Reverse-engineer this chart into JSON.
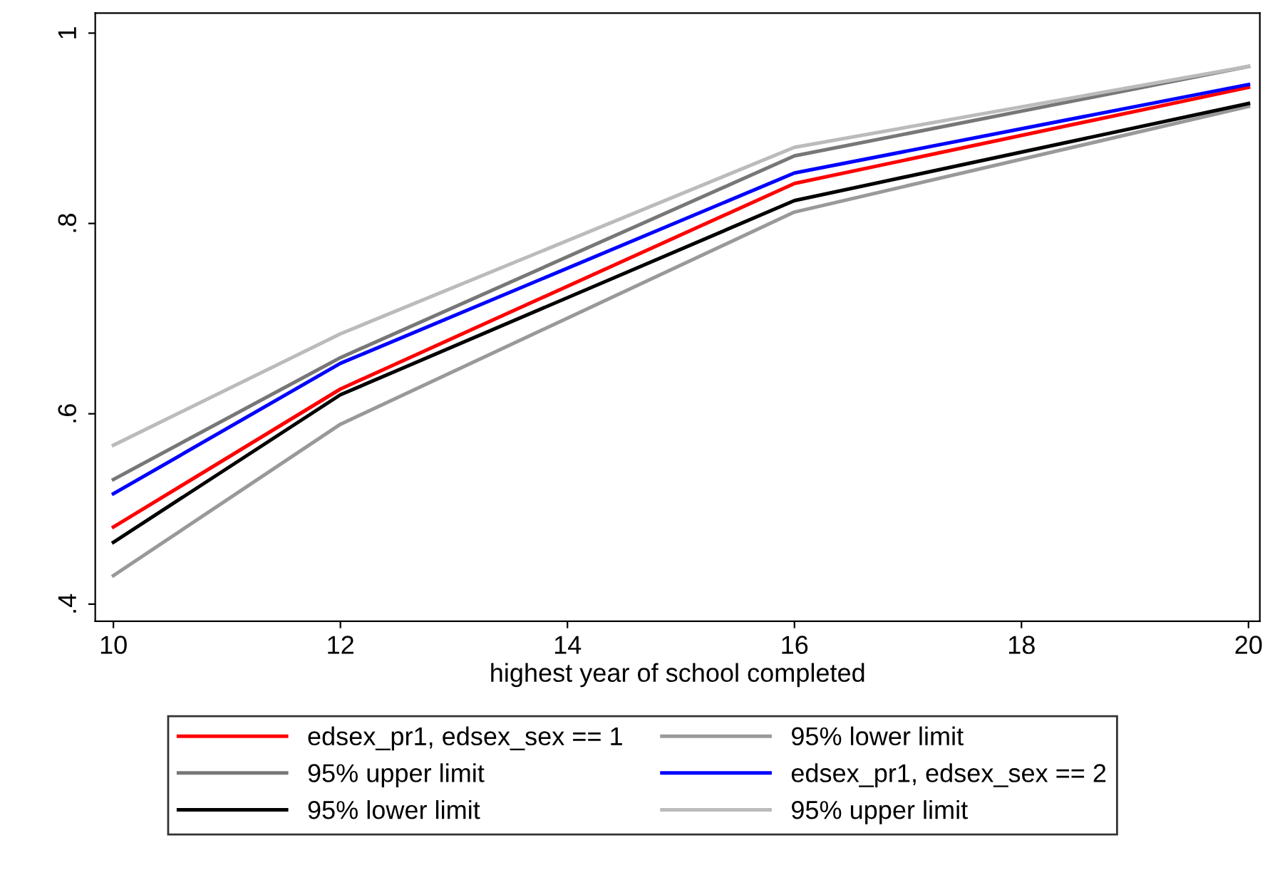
{
  "chart_data": {
    "type": "line",
    "xlabel": "highest year of school completed",
    "x": [
      10,
      12,
      16,
      20
    ],
    "series": [
      {
        "name": "edsex_pr1, edsex_sex == 1",
        "color": "#ff0000",
        "values": [
          0.481,
          0.626,
          0.842,
          0.943
        ]
      },
      {
        "name": "95% lower limit",
        "color": "#999999",
        "values": [
          0.43,
          0.589,
          0.812,
          0.923
        ]
      },
      {
        "name": "95% upper limit",
        "color": "#777777",
        "values": [
          0.531,
          0.659,
          0.871,
          0.965
        ]
      },
      {
        "name": "edsex_pr1, edsex_sex == 2",
        "color": "#0000ff",
        "values": [
          0.516,
          0.653,
          0.853,
          0.946
        ]
      },
      {
        "name": "95% lower limit",
        "color": "#000000",
        "values": [
          0.465,
          0.62,
          0.824,
          0.926
        ]
      },
      {
        "name": "95% upper limit",
        "color": "#bbbbbb",
        "values": [
          0.567,
          0.684,
          0.88,
          0.965
        ]
      }
    ],
    "xlim": [
      9.84,
      20.1
    ],
    "ylim": [
      0.382,
      1.021
    ],
    "xticks": [
      10,
      12,
      14,
      16,
      18,
      20
    ],
    "yticks": [
      {
        "value": 0.4,
        "label": ".4"
      },
      {
        "value": 0.6,
        "label": ".6"
      },
      {
        "value": 0.8,
        "label": ".8"
      },
      {
        "value": 1,
        "label": "1"
      }
    ],
    "grid": false,
    "legend": "bottom",
    "marker": "none",
    "line_style": "solid"
  }
}
